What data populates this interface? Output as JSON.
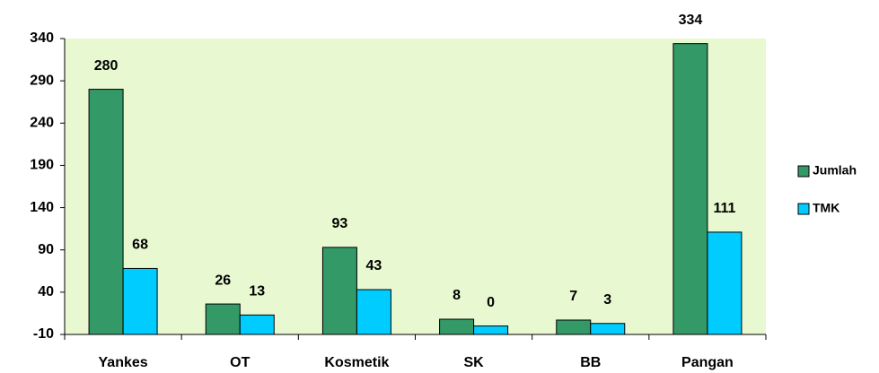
{
  "chart_data": {
    "type": "bar",
    "categories": [
      "Yankes",
      "OT",
      "Kosmetik",
      "SK",
      "BB",
      "Pangan"
    ],
    "series": [
      {
        "name": "Jumlah",
        "color": "#339966",
        "values": [
          280,
          26,
          93,
          8,
          7,
          334
        ]
      },
      {
        "name": "TMK",
        "color": "#00ccff",
        "values": [
          68,
          13,
          43,
          0,
          3,
          111
        ]
      }
    ],
    "ylim": [
      -10,
      340
    ],
    "yticks": [
      -10,
      40,
      90,
      140,
      190,
      240,
      290,
      340
    ],
    "legend": "right",
    "plot_background": "#e8f8d0"
  }
}
